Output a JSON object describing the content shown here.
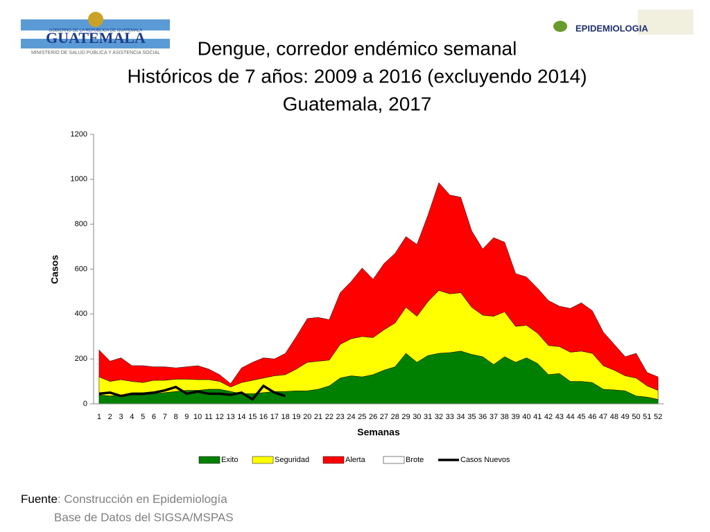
{
  "header": {
    "logo_left_top": "GOBIERNO DE LA REPÚBLICA DE GUATEMALA",
    "logo_left_main": "GUATEMALA",
    "logo_left_bottom": "MINISTERIO DE SALUD PÚBLICA Y ASISTENCIA SOCIAL",
    "logo_right": "EPIDEMIOLOGIA"
  },
  "chart_data": {
    "type": "area",
    "title": [
      "Dengue, corredor endémico semanal",
      "Históricos de 7 años: 2009 a 2016 (excluyendo 2014)",
      "Guatemala, 2017"
    ],
    "xlabel": "Semanas",
    "ylabel": "Casos",
    "categories": [
      "1",
      "2",
      "3",
      "4",
      "5",
      "6",
      "7",
      "8",
      "9",
      "10",
      "11",
      "12",
      "13",
      "14",
      "15",
      "16",
      "17",
      "18",
      "19",
      "20",
      "21",
      "22",
      "23",
      "24",
      "25",
      "26",
      "27",
      "28",
      "29",
      "30",
      "31",
      "32",
      "33",
      "34",
      "35",
      "36",
      "37",
      "38",
      "39",
      "40",
      "41",
      "42",
      "43",
      "44",
      "45",
      "46",
      "47",
      "48",
      "49",
      "50",
      "51",
      "52"
    ],
    "ylim": [
      0,
      1200
    ],
    "yticks": [
      0,
      200,
      400,
      600,
      800,
      1000,
      1200
    ],
    "legend": "bottom",
    "series": [
      {
        "name": "Exito",
        "color": "#008000",
        "values": [
          40,
          35,
          40,
          40,
          40,
          45,
          50,
          55,
          60,
          60,
          65,
          65,
          55,
          45,
          45,
          50,
          55,
          55,
          58,
          58,
          65,
          80,
          115,
          125,
          120,
          130,
          150,
          165,
          225,
          185,
          215,
          225,
          228,
          235,
          220,
          210,
          175,
          210,
          185,
          205,
          180,
          130,
          135,
          100,
          100,
          95,
          65,
          62,
          58,
          35,
          30,
          20
        ]
      },
      {
        "name": "Seguridad",
        "color": "#ffff00",
        "values": [
          80,
          65,
          68,
          60,
          55,
          60,
          55,
          55,
          50,
          48,
          43,
          35,
          20,
          50,
          60,
          65,
          70,
          75,
          97,
          127,
          125,
          115,
          150,
          165,
          180,
          165,
          180,
          195,
          205,
          205,
          240,
          280,
          262,
          260,
          210,
          185,
          215,
          200,
          160,
          145,
          135,
          130,
          120,
          130,
          135,
          130,
          105,
          88,
          67,
          80,
          50,
          40
        ]
      },
      {
        "name": "Alerta",
        "color": "#ff0000",
        "values": [
          120,
          90,
          97,
          70,
          75,
          60,
          60,
          50,
          55,
          62,
          47,
          30,
          15,
          65,
          80,
          90,
          75,
          95,
          145,
          195,
          195,
          180,
          230,
          255,
          305,
          260,
          295,
          310,
          315,
          320,
          385,
          480,
          440,
          425,
          340,
          295,
          350,
          310,
          235,
          215,
          200,
          200,
          180,
          195,
          215,
          190,
          150,
          115,
          85,
          110,
          60,
          60
        ]
      },
      {
        "name": "Brote",
        "color": "#ffffff",
        "values": [
          null,
          null,
          null,
          null,
          null,
          null,
          null,
          null,
          null,
          null,
          null,
          null,
          null,
          null,
          null,
          null,
          null,
          null,
          null,
          null,
          null,
          null,
          null,
          null,
          null,
          null,
          null,
          null,
          null,
          null,
          null,
          null,
          null,
          null,
          null,
          null,
          null,
          null,
          null,
          null,
          null,
          null,
          null,
          null,
          null,
          null,
          null,
          null,
          null,
          null,
          null,
          null
        ]
      },
      {
        "name": "Casos Nuevos",
        "color": "#000000",
        "type": "line",
        "values": [
          45,
          50,
          35,
          45,
          45,
          50,
          60,
          75,
          45,
          55,
          45,
          45,
          40,
          50,
          20,
          80,
          50,
          35,
          null,
          null,
          null,
          null,
          null,
          null,
          null,
          null,
          null,
          null,
          null,
          null,
          null,
          null,
          null,
          null,
          null,
          null,
          null,
          null,
          null,
          null,
          null,
          null,
          null,
          null,
          null,
          null,
          null,
          null,
          null,
          null,
          null,
          null
        ]
      }
    ]
  },
  "footer": {
    "label": "Fuente",
    "line1": ": Construcción en Epidemiología",
    "line2": "Base de Datos del SIGSA/MSPAS"
  }
}
